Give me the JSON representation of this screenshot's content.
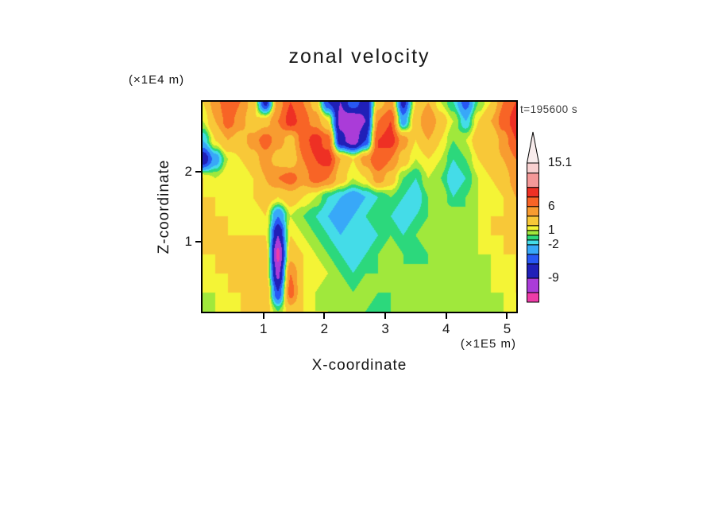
{
  "chart_data": {
    "type": "heatmap",
    "title": "zonal velocity",
    "xlabel": "X-coordinate",
    "ylabel": "Z-coordinate",
    "x_units": "(×1E5 m)",
    "y_units": "(×1E4 m)",
    "timestamp": "t=195600 s",
    "x_range": [
      0,
      5.15
    ],
    "y_range": [
      0,
      3.0
    ],
    "x_ticks": [
      1,
      2,
      3,
      4,
      5
    ],
    "y_ticks": [
      1,
      2
    ],
    "legend_position": "right",
    "grid": false,
    "colorbar": {
      "min": -14,
      "max": 15.1,
      "levels": [
        -12,
        -9,
        -6,
        -4,
        -2,
        -1,
        0,
        1,
        2,
        4,
        6,
        8,
        10,
        13
      ],
      "colors": [
        "#ee3ca8",
        "#aa3cd8",
        "#2020b8",
        "#2858f4",
        "#38a8f8",
        "#44dce8",
        "#2cd87c",
        "#a0e83c",
        "#f4f436",
        "#f8c838",
        "#f89c30",
        "#f86426",
        "#ee3024",
        "#f49898",
        "#f8d0d0"
      ],
      "labels": [
        {
          "text": "15.1",
          "value": 15.1
        },
        {
          "text": "6",
          "value": 6
        },
        {
          "text": "1",
          "value": 1
        },
        {
          "text": "-2",
          "value": -2
        },
        {
          "text": "-9",
          "value": -9
        }
      ]
    },
    "values": [
      [
        2,
        5,
        8,
        6,
        3,
        -7,
        5,
        8,
        6,
        3,
        -6,
        -9,
        -4,
        -8,
        3,
        5,
        -7,
        2,
        4,
        1,
        -1,
        -5,
        0,
        2,
        6,
        8
      ],
      [
        1,
        4,
        7,
        5,
        2,
        3,
        6,
        9,
        7,
        5,
        2,
        -10,
        -12,
        -9,
        6,
        8,
        -3,
        3,
        6,
        3,
        1,
        -2,
        2,
        4,
        7,
        9
      ],
      [
        -2,
        2,
        4,
        3,
        5,
        7,
        5,
        3,
        7,
        9,
        7,
        -8,
        -11,
        -6,
        8,
        9,
        5,
        2,
        4,
        2,
        0,
        1,
        3,
        2,
        5,
        8
      ],
      [
        -8,
        -3,
        1,
        2,
        3,
        5,
        3,
        2,
        6,
        8,
        9,
        4,
        2,
        5,
        8,
        6,
        3,
        1,
        2,
        1,
        -1,
        0,
        2,
        3,
        4,
        6
      ],
      [
        2,
        1,
        2,
        1,
        2,
        4,
        6,
        7,
        5,
        7,
        6,
        3,
        1,
        2,
        5,
        3,
        0,
        -1,
        1,
        0,
        -2,
        -1,
        1,
        2,
        3,
        5
      ],
      [
        2,
        2,
        1,
        1,
        2,
        3,
        2,
        3,
        2,
        1,
        -1,
        -2,
        -3,
        -2,
        -1,
        0,
        -1,
        -2,
        0,
        1,
        -1,
        0,
        1,
        1,
        2,
        4
      ],
      [
        2,
        2,
        2,
        1,
        1,
        2,
        -4,
        1,
        0,
        -1,
        -2,
        -3,
        -2,
        -1,
        0,
        -1,
        -2,
        -1,
        0,
        0,
        1,
        0,
        1,
        2,
        2,
        3
      ],
      [
        2,
        2,
        2,
        2,
        2,
        2,
        -9,
        2,
        1,
        0,
        -1,
        -2,
        -1,
        -2,
        -1,
        0,
        -1,
        0,
        1,
        1,
        0,
        1,
        1,
        2,
        2,
        2
      ],
      [
        2,
        2,
        2,
        2,
        2,
        3,
        -13,
        3,
        2,
        1,
        0,
        -1,
        -2,
        -1,
        0,
        1,
        0,
        -1,
        0,
        1,
        1,
        0,
        1,
        1,
        2,
        2
      ],
      [
        1,
        2,
        2,
        2,
        2,
        3,
        -10,
        6,
        2,
        2,
        1,
        0,
        -1,
        0,
        0,
        1,
        0,
        1,
        0,
        1,
        0,
        1,
        0,
        1,
        1,
        2
      ],
      [
        1,
        1,
        2,
        2,
        2,
        4,
        -6,
        7,
        2,
        1,
        0,
        1,
        0,
        1,
        0,
        0,
        1,
        0,
        1,
        0,
        1,
        0,
        1,
        1,
        1,
        2
      ],
      [
        0,
        1,
        1,
        2,
        2,
        3,
        0,
        3,
        2,
        1,
        1,
        0,
        1,
        0,
        -1,
        0,
        1,
        0,
        0,
        1,
        0,
        1,
        0,
        0,
        1,
        1
      ]
    ]
  }
}
